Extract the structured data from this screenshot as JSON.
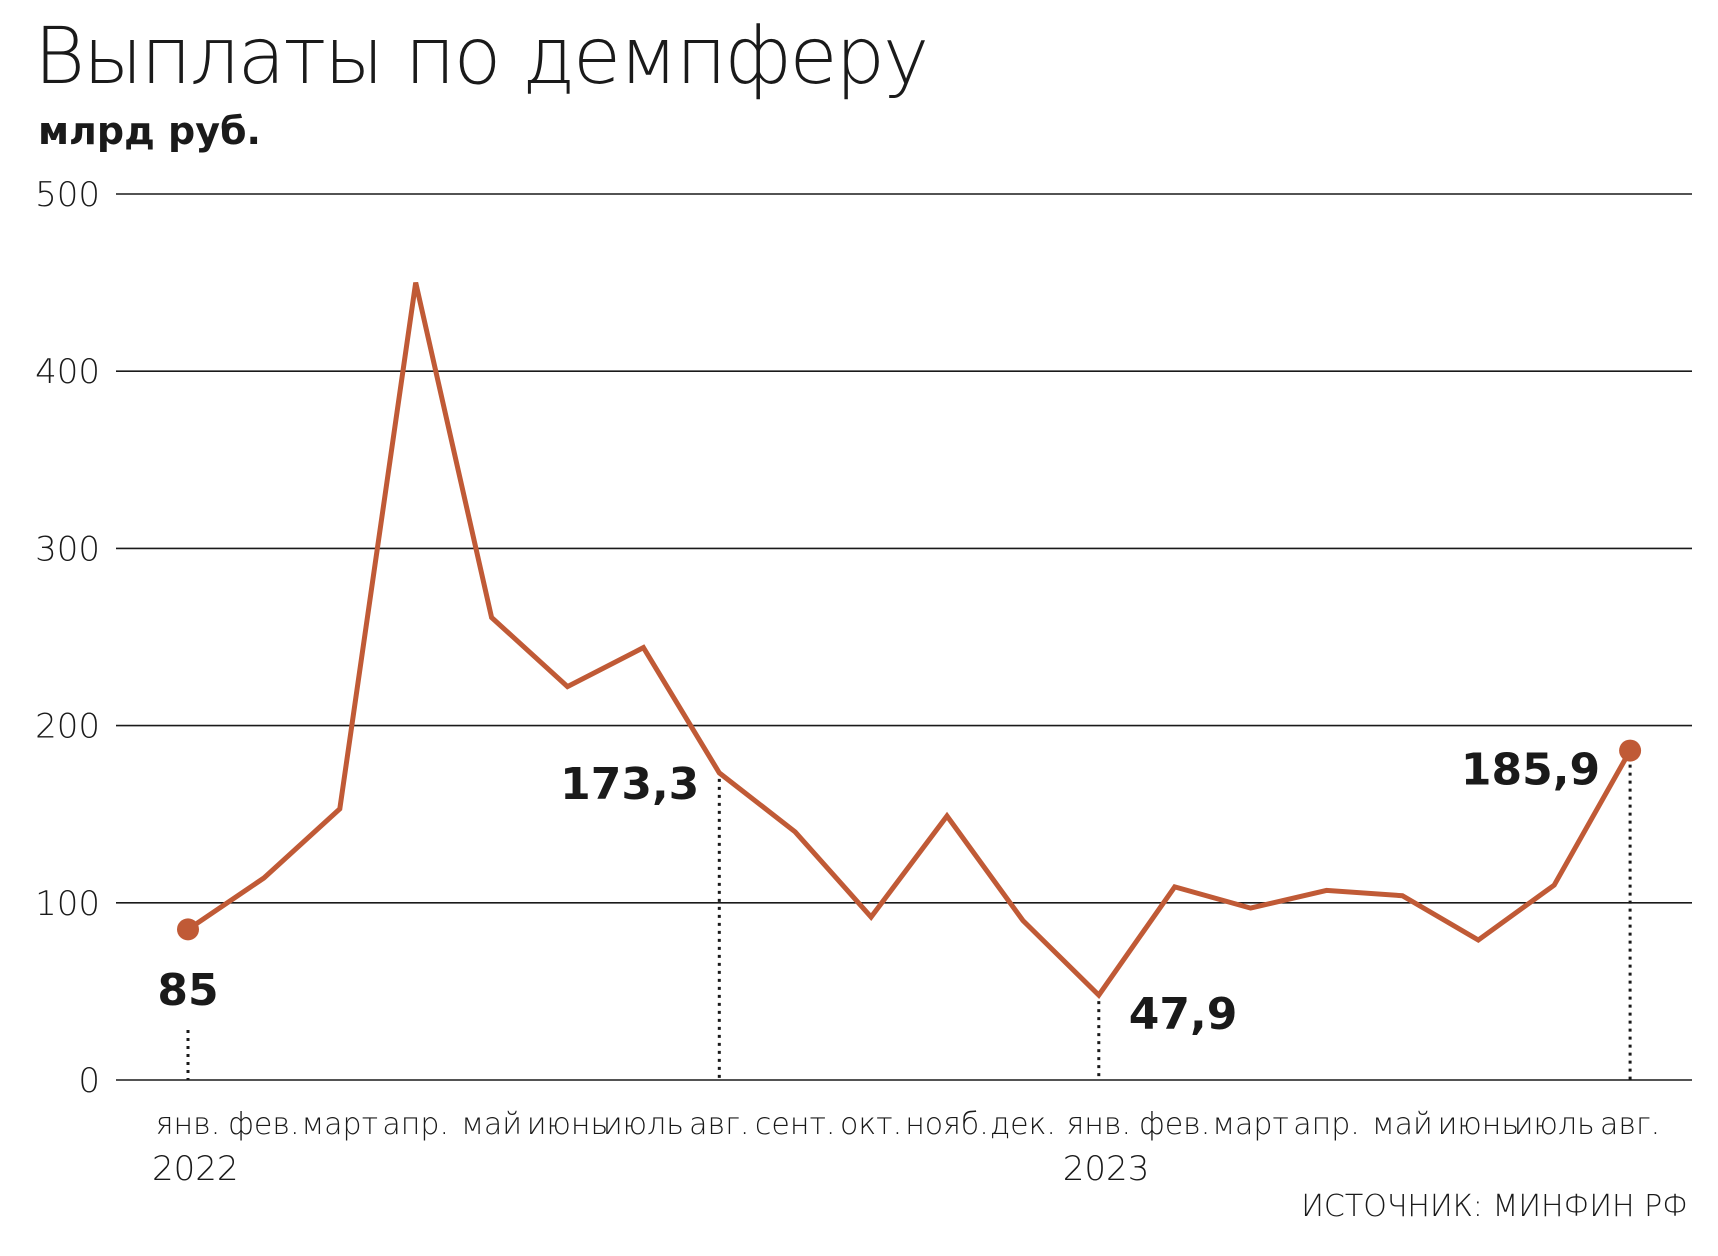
{
  "title": "Выплаты по демпферу",
  "subtitle": "млрд руб.",
  "source": "ИСТОЧНИК: МИНФИН РФ",
  "colors": {
    "line": "#c05a36",
    "grid": "#1a1a1a",
    "text": "#1a1a1a"
  },
  "chart_data": {
    "type": "line",
    "title": "Выплаты по демпферу",
    "ylabel": "млрд руб.",
    "xlabel": "",
    "ylim": [
      0,
      500
    ],
    "yticks": [
      0,
      100,
      200,
      300,
      400,
      500
    ],
    "grid": "horizontal",
    "categories": [
      "янв.",
      "фев.",
      "март",
      "апр.",
      "май",
      "июнь",
      "июль",
      "авг.",
      "сент.",
      "окт.",
      "нояб.",
      "дек.",
      "янв.",
      "фев.",
      "март",
      "апр.",
      "май",
      "июнь",
      "июль",
      "авг."
    ],
    "years": [
      {
        "label": "2022",
        "index": 0
      },
      {
        "label": "2023",
        "index": 12
      }
    ],
    "series": [
      {
        "values": [
          85,
          114,
          153,
          450,
          261,
          222,
          244,
          173.3,
          140,
          92,
          149,
          90,
          47.9,
          109,
          97,
          107,
          104,
          79,
          110,
          185.9
        ]
      }
    ],
    "annotations": [
      {
        "index": 0,
        "value": 85,
        "label": "85",
        "marker": true
      },
      {
        "index": 7,
        "value": 173.3,
        "label": "173,3",
        "marker": false
      },
      {
        "index": 12,
        "value": 47.9,
        "label": "47,9",
        "marker": false
      },
      {
        "index": 19,
        "value": 185.9,
        "label": "185,9",
        "marker": true
      }
    ]
  }
}
